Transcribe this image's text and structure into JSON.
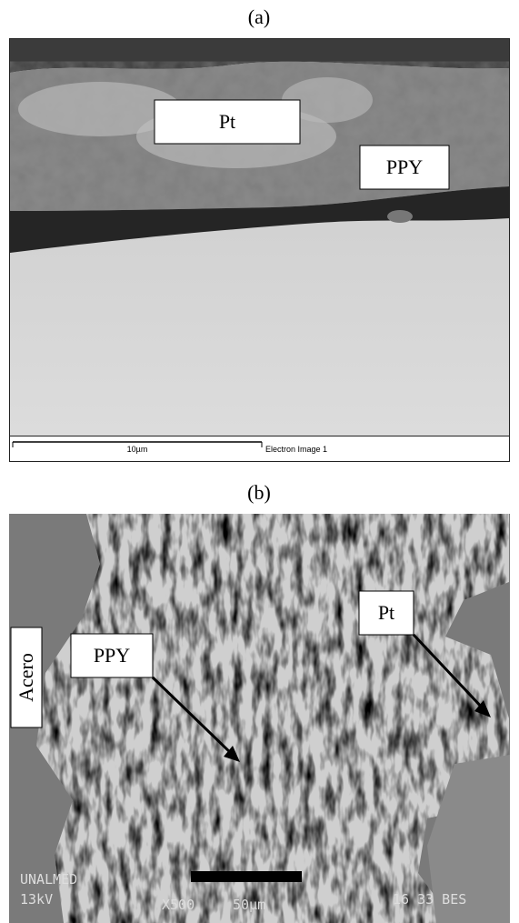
{
  "panels": [
    {
      "label": "(a)",
      "annotations": [
        "Pt",
        "PPY"
      ],
      "scale_bar": "10µm",
      "caption": "Electron Image 1"
    },
    {
      "label": "(b)",
      "annotations": [
        "PPY",
        "Pt",
        "Acero"
      ],
      "overlay": [
        "UNALMED",
        "13kV",
        "X500",
        "50µm",
        "16 33 BES"
      ]
    }
  ]
}
